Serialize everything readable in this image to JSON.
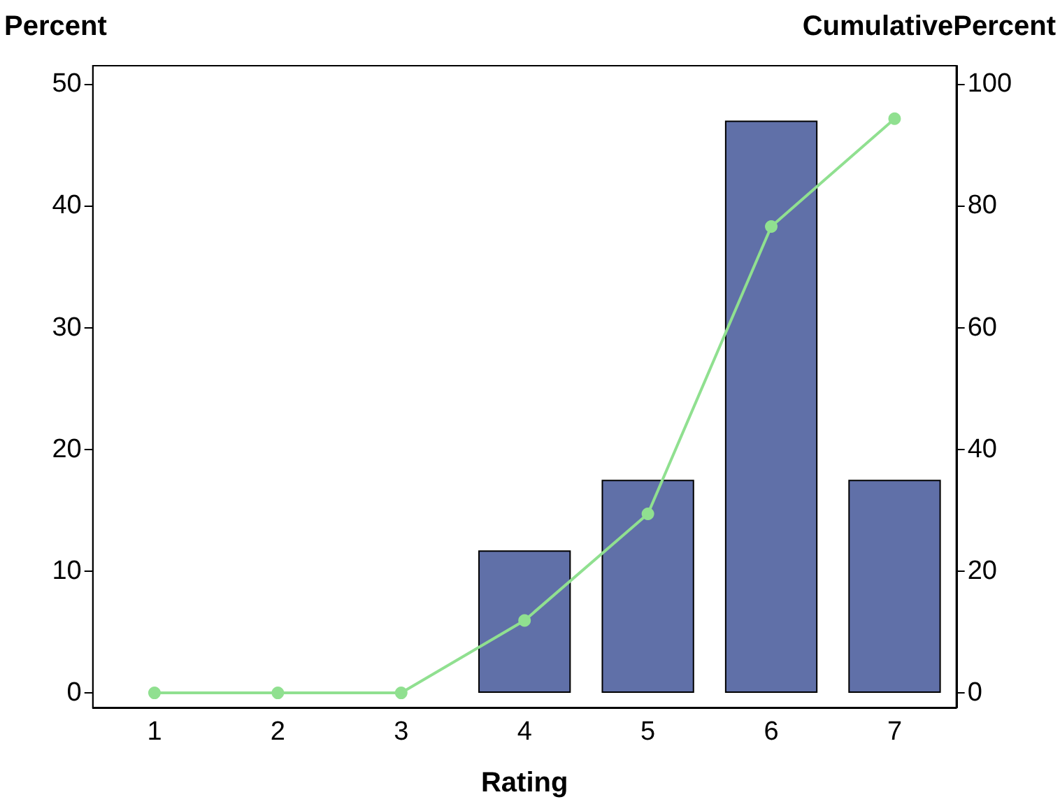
{
  "chart_data": {
    "type": "bar",
    "xlabel": "Rating",
    "ylabel": "Percent",
    "y2label": "CumulativePercent",
    "categories": [
      "1",
      "2",
      "3",
      "4",
      "5",
      "6",
      "7"
    ],
    "series": [
      {
        "color": "#6070a8",
        "values": [
          0,
          0,
          0,
          11.7,
          17.5,
          47.0,
          17.5
        ]
      },
      {
        "type": "line",
        "axis": "y2",
        "color": "#90e090",
        "marker": "circle",
        "values": [
          0,
          0,
          0,
          11.9,
          29.4,
          76.6,
          94.3
        ]
      }
    ],
    "ylim": [
      -1.2,
      51.5
    ],
    "yticks": [
      0,
      10,
      20,
      30,
      40,
      50
    ],
    "y2lim": [
      -2.4,
      103
    ],
    "y2ticks": [
      0,
      20,
      40,
      60,
      80,
      100
    ],
    "grid": false
  }
}
